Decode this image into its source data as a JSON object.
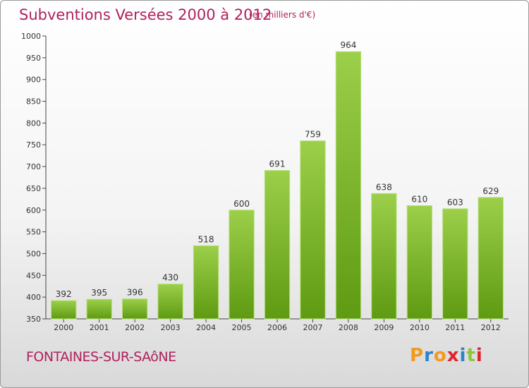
{
  "header": {
    "title": "Subventions Versées 2000 à 2012",
    "subtitle": "(en milliers d'€)"
  },
  "footer": {
    "place": "FONTAINES-SUR-SAôNE",
    "logo_text": "Proxiti",
    "logo_colors": [
      "#f39a1e",
      "#2a84c8",
      "#f39a1e",
      "#e2222b",
      "#2a84c8",
      "#8cc63f",
      "#e2222b"
    ]
  },
  "chart_data": {
    "type": "bar",
    "title": "Subventions Versées 2000 à 2012",
    "categories": [
      "2000",
      "2001",
      "2002",
      "2003",
      "2004",
      "2005",
      "2006",
      "2007",
      "2008",
      "2009",
      "2010",
      "2011",
      "2012"
    ],
    "values": [
      392,
      395,
      396,
      430,
      518,
      600,
      691,
      759,
      964,
      638,
      610,
      603,
      629
    ],
    "ylim": [
      350,
      1000
    ],
    "yticks": [
      350,
      400,
      450,
      500,
      550,
      600,
      650,
      700,
      750,
      800,
      850,
      900,
      950,
      1000
    ],
    "grid": false,
    "legend": "none",
    "bar_color_top": "#9ccf4a",
    "bar_color_bottom": "#5e9a12"
  }
}
